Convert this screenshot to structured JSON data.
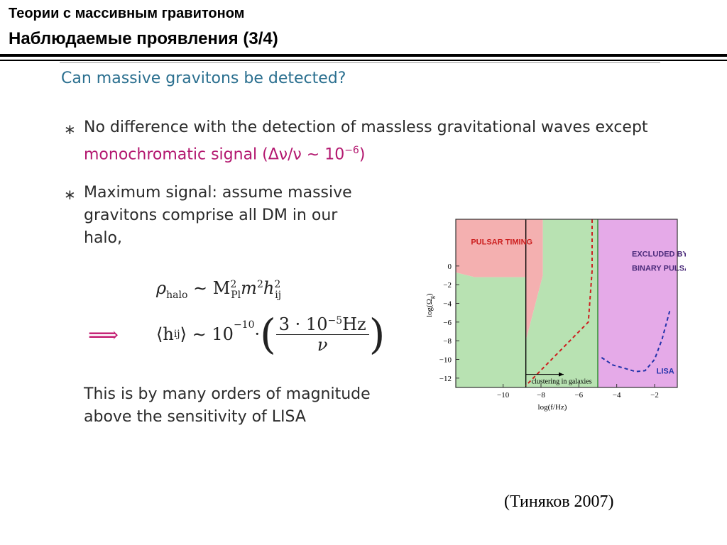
{
  "header": {
    "line1": "Теории с массивным гравитоном",
    "line2": "Наблюдаемые проявления (3/4)"
  },
  "section_title": "Can massive gravitons be detected?",
  "bullets": [
    {
      "symbol": "∗",
      "line1": "No difference with the detection of massless gravitational waves except",
      "line2_highlight": "monochromatic signal (Δν/ν ∼ 10",
      "line2_exp": "−6",
      "line2_close": ")"
    },
    {
      "symbol": "∗",
      "line1": "Maximum signal:  assume massive",
      "line2": "gravitons  comprise  all  DM  in  our",
      "line3": "halo,"
    }
  ],
  "equations": {
    "rho_lhs": "ρ",
    "rho_sub": "halo",
    "rho_rel": " ∼ M",
    "rho_msub": "Pl",
    "rho_msup": "2",
    "rho_m": "m",
    "rho_m_sup": "2",
    "rho_h": "h",
    "rho_h_sup": "2",
    "rho_h_sub": "ij",
    "implies": "⟹",
    "h_lhs": "⟨h",
    "h_sub": "ij",
    "h_close": "⟩ ∼ 10",
    "h_exp": "−10",
    "h_dot": " · ",
    "frac_num": "3 · 10",
    "frac_num_exp": "−5",
    "frac_num_unit": "Hz",
    "frac_den": "ν",
    "paren_l": "(",
    "paren_r": ")"
  },
  "conclusion": {
    "line1": "This is by many orders of magnitude",
    "line2": "above the sensitivity of LISA"
  },
  "citation": "(Тиняков 2007)",
  "chart_data": {
    "type": "area",
    "xlabel": "log(f/Hz)",
    "ylabel": "log(Ω",
    "ylabel_sub": "g",
    "ylabel_close": ")",
    "xlim": [
      -12.5,
      -0.8
    ],
    "ylim": [
      -13,
      5
    ],
    "xticks": [
      -10,
      -8,
      -6,
      -4,
      -2
    ],
    "xtick_labels": [
      "−10",
      "−8",
      "−6",
      "−4",
      "−2"
    ],
    "yticks": [
      0,
      -2,
      -4,
      -6,
      -8,
      -10,
      -12
    ],
    "ytick_labels": [
      "0",
      "−2",
      "−4",
      "−6",
      "−8",
      "−10",
      "−12"
    ],
    "regions": [
      {
        "label": "PULSAR TIMING",
        "color": "#f4b0b0",
        "polygon": [
          [
            -12.5,
            5
          ],
          [
            -7.9,
            5
          ],
          [
            -7.9,
            -1
          ],
          [
            -8.8,
            -8
          ],
          [
            -8.8,
            -1.2
          ],
          [
            -11.5,
            -1.2
          ],
          [
            -12.5,
            -0.7
          ]
        ]
      },
      {
        "label": "",
        "color": "#b8e2b2",
        "polygon": [
          [
            -12.5,
            -0.7
          ],
          [
            -11.5,
            -1.2
          ],
          [
            -8.8,
            -1.2
          ],
          [
            -8.8,
            -8
          ],
          [
            -7.9,
            -1
          ],
          [
            -7.9,
            5
          ],
          [
            -5.0,
            5
          ],
          [
            -5.0,
            -13
          ],
          [
            -12.5,
            -13
          ]
        ]
      },
      {
        "label": "EXCLUDED BY BINARY PULSARS",
        "color": "#e5aae8",
        "polygon": [
          [
            -5.0,
            5
          ],
          [
            -0.8,
            5
          ],
          [
            -0.8,
            -13
          ],
          [
            -5.0,
            -13
          ]
        ]
      }
    ],
    "lines": [
      {
        "name": "",
        "style": "solid",
        "color": "#000000",
        "x": [
          -8.8,
          -8.8
        ],
        "y": [
          5,
          -13
        ]
      },
      {
        "name": "",
        "style": "solid",
        "color": "#2a8a2a",
        "x": [
          -5.0,
          -5.0
        ],
        "y": [
          5,
          -13
        ]
      },
      {
        "name": "",
        "style": "dashed",
        "color": "#cc1f1f",
        "x": [
          -5.3,
          -5.3,
          -5.5,
          -8.8,
          -8.8
        ],
        "y": [
          5,
          -0.5,
          -6,
          -12.8,
          -12.8
        ]
      },
      {
        "name": "",
        "style": "dashed",
        "color": "#cc1f1f",
        "x": [
          -5.3,
          -5.3
        ],
        "y": [
          5,
          -0.5
        ]
      },
      {
        "name": "LISA",
        "style": "dashed",
        "color": "#2233aa",
        "x": [
          -4.8,
          -4.2,
          -3.5,
          -3.0,
          -2.5,
          -2.0,
          -1.6,
          -1.2
        ],
        "y": [
          -9.8,
          -10.6,
          -11.0,
          -11.3,
          -11.2,
          -10.0,
          -7.8,
          -4.8
        ]
      }
    ],
    "annotations": [
      {
        "text": "PULSAR TIMING",
        "x": -11.7,
        "y": 2.3,
        "color": "#cc1f1f"
      },
      {
        "text": "EXCLUDED BY",
        "x": -3.2,
        "y": 1.0,
        "color": "#4a2a7a"
      },
      {
        "text": "BINARY PULSARS",
        "x": -3.2,
        "y": -0.5,
        "color": "#4a2a7a"
      },
      {
        "text": "LISA",
        "x": -1.9,
        "y": -11.5,
        "color": "#2233aa"
      },
      {
        "text": "clustering in galaxies",
        "x": -8.5,
        "y": -12.6,
        "color": "#000000"
      }
    ],
    "arrow": {
      "from": [
        -8.8,
        -11.6
      ],
      "to": [
        -6.8,
        -11.6
      ]
    }
  }
}
